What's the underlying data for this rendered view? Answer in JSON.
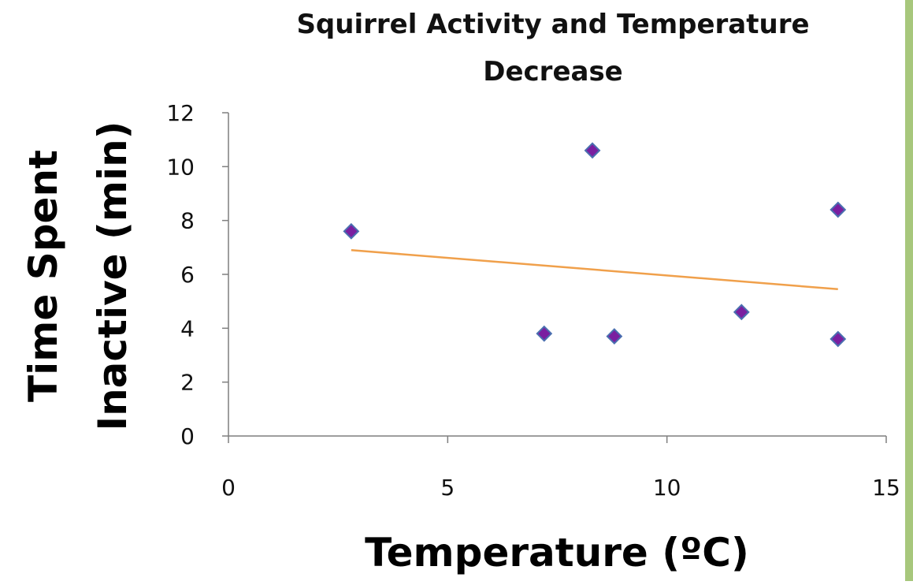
{
  "chart_data": {
    "type": "scatter",
    "title_lines": [
      "Squirrel Activity and Temperature",
      "Decrease"
    ],
    "xlabel": "Temperature (ºC)",
    "ylabel_lines": [
      "Time Spent",
      "Inactive (min)"
    ],
    "xlim": [
      0,
      15
    ],
    "ylim": [
      0,
      12
    ],
    "x_ticks": [
      0,
      5,
      10,
      15
    ],
    "y_ticks": [
      0,
      2,
      4,
      6,
      8,
      10,
      12
    ],
    "grid": false,
    "legend": "none",
    "series": [
      {
        "marker": "diamond",
        "points": [
          {
            "x": 2.8,
            "y": 7.6
          },
          {
            "x": 7.2,
            "y": 3.8
          },
          {
            "x": 8.3,
            "y": 10.6
          },
          {
            "x": 8.8,
            "y": 3.7
          },
          {
            "x": 11.7,
            "y": 4.6
          },
          {
            "x": 13.9,
            "y": 8.4
          },
          {
            "x": 13.9,
            "y": 3.6
          }
        ]
      }
    ],
    "trendline": {
      "type": "linear",
      "from": {
        "x": 2.8,
        "y": 6.9
      },
      "to": {
        "x": 13.9,
        "y": 5.45
      }
    }
  },
  "colors": {
    "marker_fill": "#7a1fa0",
    "marker_edge": "#4a6fb0",
    "trendline": "#f0a04b",
    "axis": "#7f7f7f",
    "frame_border": "#a7c77c"
  }
}
